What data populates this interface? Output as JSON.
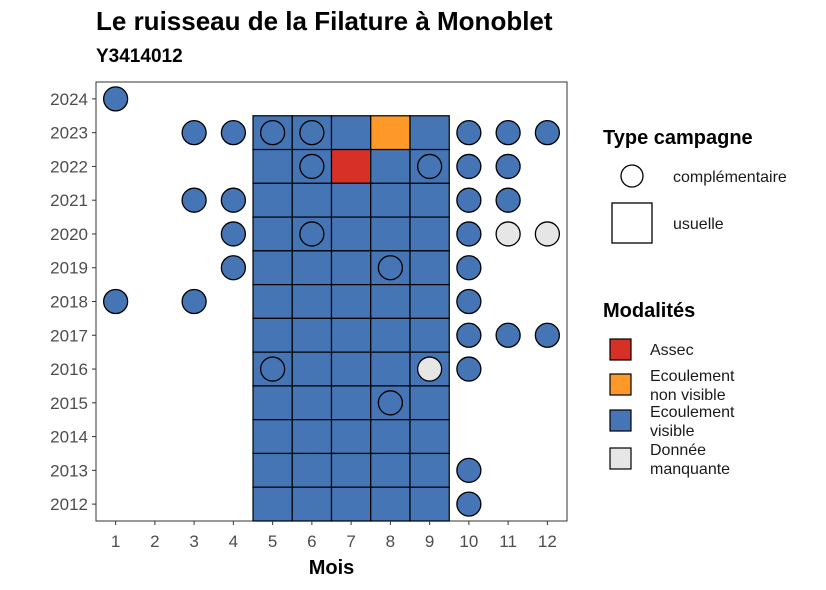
{
  "chart_data": {
    "type": "heatmap",
    "title": "Le ruisseau de la Filature à Monoblet",
    "subtitle": "Y3414012",
    "xlabel": "Mois",
    "ylabel": "",
    "x_ticks": [
      1,
      2,
      3,
      4,
      5,
      6,
      7,
      8,
      9,
      10,
      11,
      12
    ],
    "y_ticks": [
      2024,
      2023,
      2022,
      2021,
      2020,
      2019,
      2018,
      2017,
      2016,
      2015,
      2014,
      2013,
      2012
    ],
    "xlim": [
      0.5,
      12.5
    ],
    "ylim": [
      2011.5,
      2024.5
    ],
    "colors": {
      "Assec": "#d73027",
      "Ecoulement non visible": "#fe9929",
      "Ecoulement visible": "#4575b4",
      "Donnée manquante": "#e6e6e6"
    },
    "legend_type": {
      "title": "Type campagne",
      "items": [
        {
          "label": "complémentaire",
          "shape": "circle"
        },
        {
          "label": "usuelle",
          "shape": "square"
        }
      ]
    },
    "legend_modalites": {
      "title": "Modalités",
      "items": [
        {
          "key": "Assec",
          "lines": [
            "Assec"
          ]
        },
        {
          "key": "Ecoulement non visible",
          "lines": [
            "Ecoulement",
            "non visible"
          ]
        },
        {
          "key": "Ecoulement visible",
          "lines": [
            "Ecoulement",
            "visible"
          ]
        },
        {
          "key": "Donnée manquante",
          "lines": [
            "Donnée",
            "manquante"
          ]
        }
      ]
    },
    "usuelle": [
      {
        "year": 2023,
        "months": [
          5,
          6,
          7,
          8,
          9
        ],
        "values": [
          "Ecoulement visible",
          "Ecoulement visible",
          "Ecoulement visible",
          "Ecoulement non visible",
          "Ecoulement visible"
        ]
      },
      {
        "year": 2022,
        "months": [
          5,
          6,
          7,
          8,
          9
        ],
        "values": [
          "Ecoulement visible",
          "Ecoulement visible",
          "Assec",
          "Ecoulement visible",
          "Ecoulement visible"
        ]
      },
      {
        "year": 2021,
        "months": [
          5,
          6,
          7,
          8,
          9
        ],
        "values": [
          "Ecoulement visible",
          "Ecoulement visible",
          "Ecoulement visible",
          "Ecoulement visible",
          "Ecoulement visible"
        ]
      },
      {
        "year": 2020,
        "months": [
          5,
          6,
          7,
          8,
          9
        ],
        "values": [
          "Ecoulement visible",
          "Ecoulement visible",
          "Ecoulement visible",
          "Ecoulement visible",
          "Ecoulement visible"
        ]
      },
      {
        "year": 2019,
        "months": [
          5,
          6,
          7,
          8,
          9
        ],
        "values": [
          "Ecoulement visible",
          "Ecoulement visible",
          "Ecoulement visible",
          "Ecoulement visible",
          "Ecoulement visible"
        ]
      },
      {
        "year": 2018,
        "months": [
          5,
          6,
          7,
          8,
          9
        ],
        "values": [
          "Ecoulement visible",
          "Ecoulement visible",
          "Ecoulement visible",
          "Ecoulement visible",
          "Ecoulement visible"
        ]
      },
      {
        "year": 2017,
        "months": [
          5,
          6,
          7,
          8,
          9
        ],
        "values": [
          "Ecoulement visible",
          "Ecoulement visible",
          "Ecoulement visible",
          "Ecoulement visible",
          "Ecoulement visible"
        ]
      },
      {
        "year": 2016,
        "months": [
          5,
          6,
          7,
          8,
          9
        ],
        "values": [
          "Ecoulement visible",
          "Ecoulement visible",
          "Ecoulement visible",
          "Ecoulement visible",
          "Ecoulement visible"
        ]
      },
      {
        "year": 2015,
        "months": [
          5,
          6,
          7,
          8,
          9
        ],
        "values": [
          "Ecoulement visible",
          "Ecoulement visible",
          "Ecoulement visible",
          "Ecoulement visible",
          "Ecoulement visible"
        ]
      },
      {
        "year": 2014,
        "months": [
          5,
          6,
          7,
          8,
          9
        ],
        "values": [
          "Ecoulement visible",
          "Ecoulement visible",
          "Ecoulement visible",
          "Ecoulement visible",
          "Ecoulement visible"
        ]
      },
      {
        "year": 2013,
        "months": [
          5,
          6,
          7,
          8,
          9
        ],
        "values": [
          "Ecoulement visible",
          "Ecoulement visible",
          "Ecoulement visible",
          "Ecoulement visible",
          "Ecoulement visible"
        ]
      },
      {
        "year": 2012,
        "months": [
          5,
          6,
          7,
          8,
          9
        ],
        "values": [
          "Ecoulement visible",
          "Ecoulement visible",
          "Ecoulement visible",
          "Ecoulement visible",
          "Ecoulement visible"
        ]
      }
    ],
    "complementaire": [
      {
        "year": 2024,
        "month": 1,
        "value": "Ecoulement visible"
      },
      {
        "year": 2023,
        "month": 3,
        "value": "Ecoulement visible"
      },
      {
        "year": 2023,
        "month": 4,
        "value": "Ecoulement visible"
      },
      {
        "year": 2023,
        "month": 5,
        "value": "Ecoulement visible"
      },
      {
        "year": 2023,
        "month": 6,
        "value": "Ecoulement visible"
      },
      {
        "year": 2023,
        "month": 10,
        "value": "Ecoulement visible"
      },
      {
        "year": 2023,
        "month": 11,
        "value": "Ecoulement visible"
      },
      {
        "year": 2023,
        "month": 12,
        "value": "Ecoulement visible"
      },
      {
        "year": 2022,
        "month": 6,
        "value": "Ecoulement visible"
      },
      {
        "year": 2022,
        "month": 9,
        "value": "Ecoulement visible"
      },
      {
        "year": 2022,
        "month": 10,
        "value": "Ecoulement visible"
      },
      {
        "year": 2022,
        "month": 11,
        "value": "Ecoulement visible"
      },
      {
        "year": 2021,
        "month": 3,
        "value": "Ecoulement visible"
      },
      {
        "year": 2021,
        "month": 4,
        "value": "Ecoulement visible"
      },
      {
        "year": 2021,
        "month": 10,
        "value": "Ecoulement visible"
      },
      {
        "year": 2021,
        "month": 11,
        "value": "Ecoulement visible"
      },
      {
        "year": 2020,
        "month": 4,
        "value": "Ecoulement visible"
      },
      {
        "year": 2020,
        "month": 6,
        "value": "Ecoulement visible"
      },
      {
        "year": 2020,
        "month": 10,
        "value": "Ecoulement visible"
      },
      {
        "year": 2020,
        "month": 11,
        "value": "Donnée manquante"
      },
      {
        "year": 2020,
        "month": 12,
        "value": "Donnée manquante"
      },
      {
        "year": 2019,
        "month": 4,
        "value": "Ecoulement visible"
      },
      {
        "year": 2019,
        "month": 8,
        "value": "Ecoulement visible"
      },
      {
        "year": 2019,
        "month": 10,
        "value": "Ecoulement visible"
      },
      {
        "year": 2018,
        "month": 1,
        "value": "Ecoulement visible"
      },
      {
        "year": 2018,
        "month": 3,
        "value": "Ecoulement visible"
      },
      {
        "year": 2018,
        "month": 10,
        "value": "Ecoulement visible"
      },
      {
        "year": 2017,
        "month": 10,
        "value": "Ecoulement visible"
      },
      {
        "year": 2017,
        "month": 11,
        "value": "Ecoulement visible"
      },
      {
        "year": 2017,
        "month": 12,
        "value": "Ecoulement visible"
      },
      {
        "year": 2016,
        "month": 5,
        "value": "Ecoulement visible"
      },
      {
        "year": 2016,
        "month": 9,
        "value": "Donnée manquante"
      },
      {
        "year": 2016,
        "month": 10,
        "value": "Ecoulement visible"
      },
      {
        "year": 2015,
        "month": 8,
        "value": "Ecoulement visible"
      },
      {
        "year": 2013,
        "month": 10,
        "value": "Ecoulement visible"
      },
      {
        "year": 2012,
        "month": 10,
        "value": "Ecoulement visible"
      }
    ]
  }
}
